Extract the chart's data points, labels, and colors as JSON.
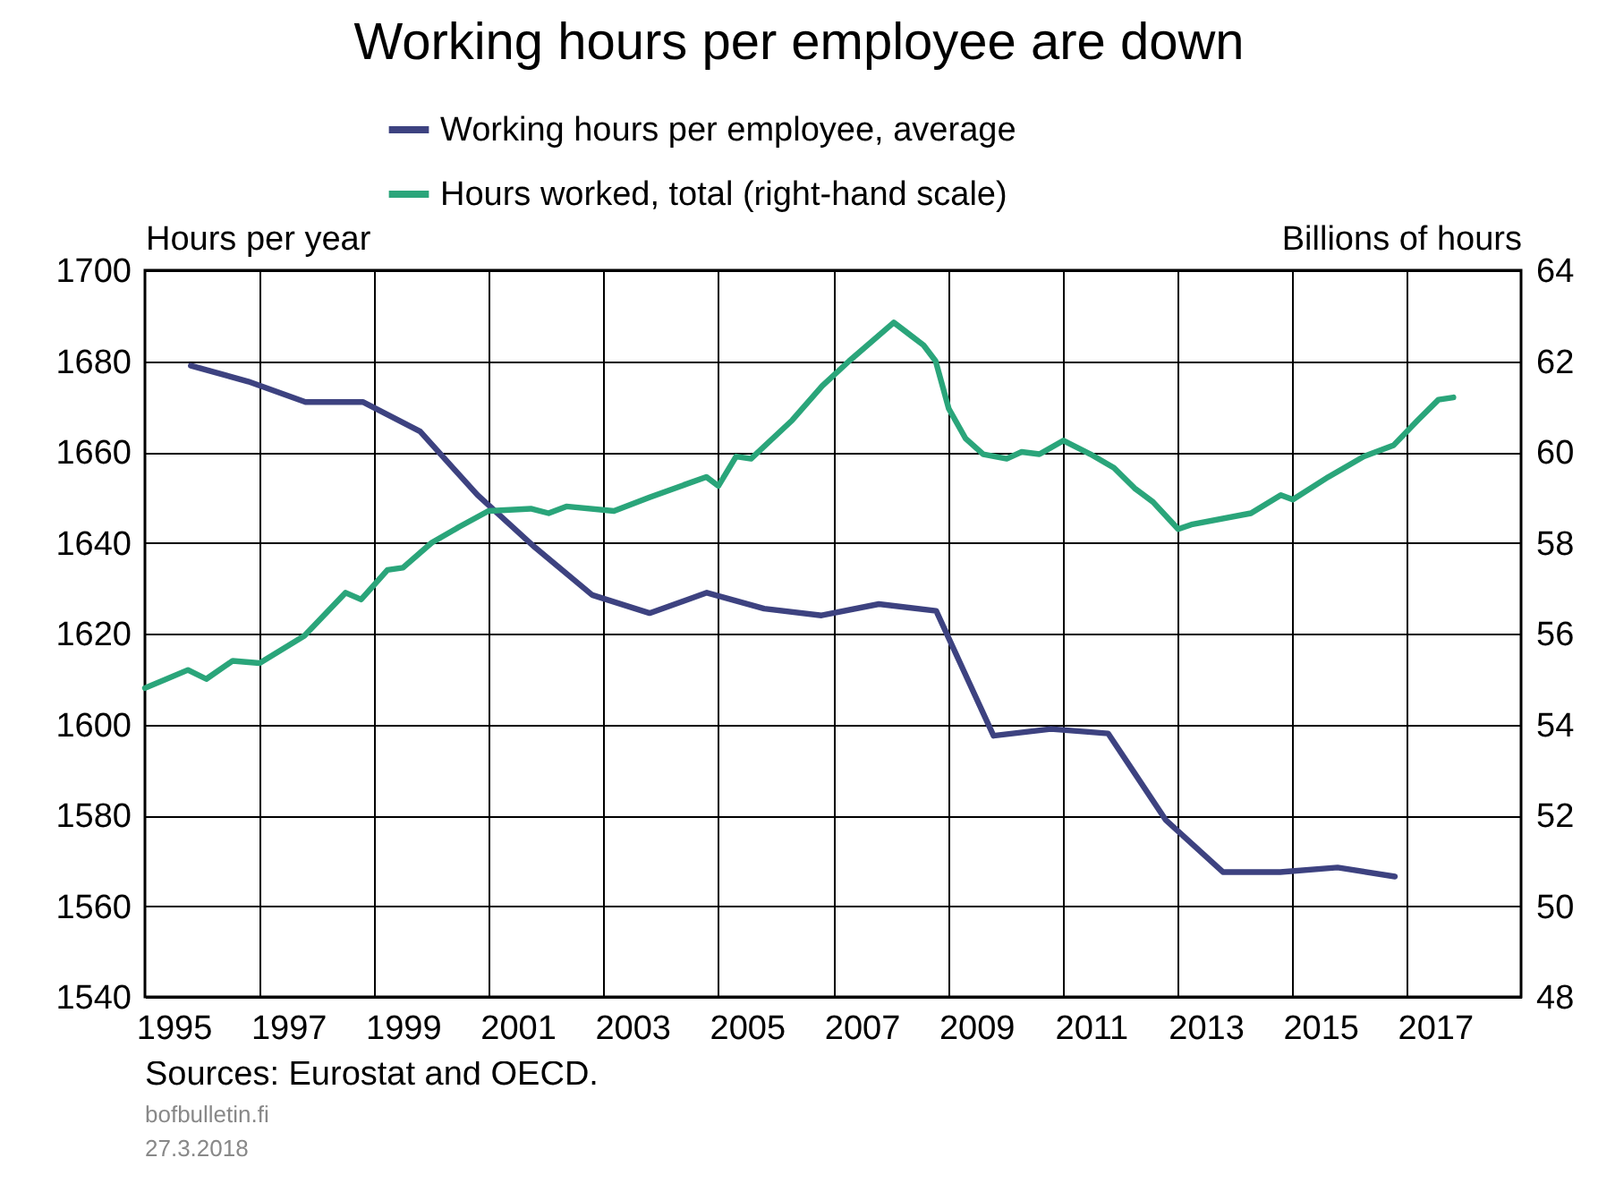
{
  "chart_data": {
    "type": "line",
    "title": "Working hours per employee are down",
    "ylabel": "Hours per year",
    "y2label": "Billions of hours",
    "annotations": [
      "Sources: Eurostat and OECD.",
      "bofbulletin.fi",
      "27.3.2018"
    ],
    "xlim": [
      1995,
      2019
    ],
    "xticks": [
      {
        "value": 1995.5,
        "label": "1995"
      },
      {
        "value": 1997,
        "label": null
      },
      {
        "value": 1997.5,
        "label": "1997"
      },
      {
        "value": 1999,
        "label": null
      },
      {
        "value": 1999.5,
        "label": "1999"
      },
      {
        "value": 2001,
        "label": null
      },
      {
        "value": 2001.5,
        "label": "2001"
      },
      {
        "value": 2003,
        "label": null
      },
      {
        "value": 2003.5,
        "label": "2003"
      },
      {
        "value": 2005,
        "label": null
      },
      {
        "value": 2005.5,
        "label": "2005"
      },
      {
        "value": 2007,
        "label": null
      },
      {
        "value": 2007.5,
        "label": "2007"
      },
      {
        "value": 2009,
        "label": null
      },
      {
        "value": 2009.5,
        "label": "2009"
      },
      {
        "value": 2011,
        "label": null
      },
      {
        "value": 2011.5,
        "label": "2011"
      },
      {
        "value": 2013,
        "label": null
      },
      {
        "value": 2013.5,
        "label": "2013"
      },
      {
        "value": 2015,
        "label": null
      },
      {
        "value": 2015.5,
        "label": "2015"
      },
      {
        "value": 2017,
        "label": null
      },
      {
        "value": 2017.5,
        "label": "2017"
      }
    ],
    "ylim": [
      1540,
      1700
    ],
    "yticks": [
      1540,
      1560,
      1580,
      1600,
      1620,
      1640,
      1660,
      1680,
      1700
    ],
    "y2lim": [
      48,
      64
    ],
    "y2ticks": [
      48,
      50,
      52,
      54,
      56,
      58,
      60,
      62,
      64
    ],
    "grid": true,
    "legend": "top",
    "series": [
      {
        "name": "Working hours per employee, average",
        "color": "#3d4280",
        "x": [
          1995.8,
          1996.8,
          1997.8,
          1998.8,
          1999.8,
          2000.8,
          2001.8,
          2002.8,
          2003.8,
          2004.8,
          2005.8,
          2006.8,
          2007.8,
          2008.8,
          2009.8,
          2010.8,
          2011.8,
          2012.8,
          2013.8,
          2014.8,
          2015.8,
          2016.8
        ],
        "values": [
          1679,
          1675.5,
          1671,
          1671,
          1664.5,
          1650.5,
          1639,
          1628.5,
          1624.5,
          1629,
          1625.5,
          1624,
          1626.5,
          1625,
          1597.5,
          1599,
          1598,
          1579,
          1567.5,
          1567.5,
          1568.5,
          1566.5
        ]
      },
      {
        "name": "Hours worked, total (right-hand scale)",
        "color": "#2aa57a",
        "axis": "y2",
        "x": [
          1995,
          1995.75,
          1996.07,
          1996.53,
          1997,
          1997.78,
          1998.5,
          1998.77,
          1999.23,
          1999.5,
          2000,
          2000.48,
          2000.99,
          2001.73,
          2002.04,
          2002.35,
          2003.18,
          2003.8,
          2004.79,
          2005,
          2005.31,
          2005.57,
          2006.29,
          2006.81,
          2007.28,
          2008.06,
          2008.58,
          2008.79,
          2009.02,
          2009.31,
          2009.62,
          2010.03,
          2010.29,
          2010.6,
          2011.02,
          2011.49,
          2011.9,
          2012.26,
          2012.58,
          2013.02,
          2013.25,
          2014.29,
          2014.81,
          2015.02,
          2015.64,
          2016.26,
          2016.78,
          2017.2,
          2017.56,
          2017.82
        ],
        "values": [
          54.8,
          55.2,
          55,
          55.4,
          55.35,
          55.95,
          56.9,
          56.75,
          57.4,
          57.45,
          58,
          58.35,
          58.7,
          58.75,
          58.65,
          58.8,
          58.7,
          59,
          59.45,
          59.25,
          59.9,
          59.85,
          60.7,
          61.45,
          62,
          62.85,
          62.35,
          62,
          60.95,
          60.3,
          59.95,
          59.85,
          60,
          59.95,
          60.25,
          59.95,
          59.65,
          59.2,
          58.9,
          58.3,
          58.4,
          58.65,
          59.05,
          58.95,
          59.45,
          59.9,
          60.15,
          60.7,
          61.15,
          61.2
        ]
      }
    ]
  }
}
